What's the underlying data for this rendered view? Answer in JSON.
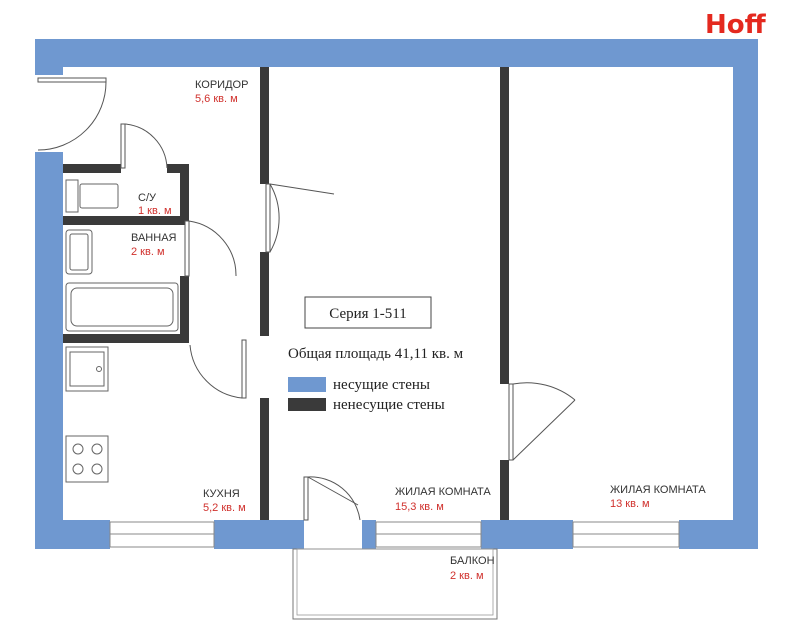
{
  "brand": {
    "logo_text": "Hoff",
    "color": "#e4291f"
  },
  "colors": {
    "load_bearing": "#6f98d0",
    "non_load_bearing": "#3a3a3a",
    "area_text": "#d0312d"
  },
  "series_label": "Серия 1-511",
  "total_area": "Общая площадь 41,11 кв. м",
  "legend": {
    "load_bearing": "несущие стены",
    "non_load_bearing": "ненесущие стены"
  },
  "rooms": {
    "corridor": {
      "name": "КОРИДОР",
      "area": "5,6 кв. м"
    },
    "wc": {
      "name": "С/У",
      "area": "1 кв. м"
    },
    "bathroom": {
      "name": "ВАННАЯ",
      "area": "2 кв. м"
    },
    "kitchen": {
      "name": "КУХНЯ",
      "area": "5,2 кв. м"
    },
    "living_1": {
      "name": "ЖИЛАЯ КОМНАТА",
      "area": "15,3 кв. м"
    },
    "living_2": {
      "name": "ЖИЛАЯ КОМНАТА",
      "area": "13 кв. м"
    },
    "balcony": {
      "name": "БАЛКОН",
      "area": "2 кв. м"
    }
  }
}
